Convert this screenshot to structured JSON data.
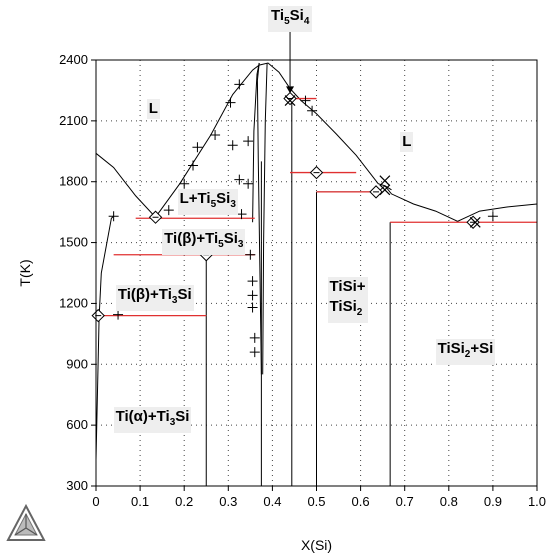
{
  "chart_data": {
    "type": "line",
    "title": "",
    "xlabel": "X(Si)",
    "ylabel": "T(K)",
    "xlim": [
      0,
      1
    ],
    "ylim": [
      300,
      2400
    ],
    "xticks": [
      "0",
      "0.1",
      "0.2",
      "0.3",
      "0.4",
      "0.5",
      "0.6",
      "0.7",
      "0.8",
      "0.9",
      "1.0"
    ],
    "yticks": [
      "300",
      "600",
      "900",
      "1200",
      "1500",
      "1800",
      "2100",
      "2400"
    ],
    "grid": "dotted",
    "series": [
      {
        "kind": "liquidus",
        "points": [
          [
            0,
            1940
          ],
          [
            0.04,
            1870
          ],
          [
            0.09,
            1730
          ],
          [
            0.135,
            1625
          ],
          [
            0.19,
            1790
          ],
          [
            0.26,
            2030
          ],
          [
            0.31,
            2230
          ],
          [
            0.355,
            2350
          ],
          [
            0.37,
            2375
          ],
          [
            0.39,
            2385
          ],
          [
            0.415,
            2340
          ],
          [
            0.44,
            2260
          ],
          [
            0.465,
            2200
          ],
          [
            0.5,
            2135
          ],
          [
            0.545,
            2035
          ],
          [
            0.59,
            1930
          ],
          [
            0.64,
            1790
          ],
          [
            0.655,
            1780
          ],
          [
            0.67,
            1740
          ],
          [
            0.72,
            1690
          ],
          [
            0.77,
            1655
          ],
          [
            0.82,
            1605
          ],
          [
            0.87,
            1655
          ],
          [
            0.93,
            1675
          ],
          [
            1.0,
            1690
          ]
        ]
      },
      {
        "kind": "solvus-left",
        "points": [
          [
            0,
            430
          ],
          [
            0.007,
            1130
          ],
          [
            0.012,
            1350
          ],
          [
            0.035,
            1620
          ],
          [
            0.04,
            1630
          ]
        ]
      },
      {
        "kind": "ti5si3-left-boundary",
        "points": [
          [
            0.375,
            850
          ],
          [
            0.372,
            1300
          ],
          [
            0.368,
            1900
          ],
          [
            0.366,
            2300
          ],
          [
            0.37,
            2385
          ]
        ]
      },
      {
        "kind": "ti5si3-right-boundary",
        "points": [
          [
            0.378,
            850
          ],
          [
            0.38,
            1500
          ],
          [
            0.384,
            2100
          ],
          [
            0.388,
            2385
          ]
        ]
      },
      {
        "kind": "ti5si3-upper",
        "points": [
          [
            0.355,
            1600
          ],
          [
            0.358,
            2050
          ],
          [
            0.365,
            2330
          ],
          [
            0.37,
            2385
          ]
        ]
      },
      {
        "kind": "tisi2-liquidus-step",
        "points": [
          [
            0.5,
            1750
          ],
          [
            0.64,
            1750
          ],
          [
            0.655,
            1780
          ],
          [
            0.67,
            1760
          ]
        ]
      }
    ],
    "compound_lines": [
      {
        "name": "Ti3Si",
        "x": 0.25,
        "ymin": 300,
        "ymax": 1440
      },
      {
        "name": "Ti5Si4",
        "x": 0.444,
        "ymin": 300,
        "ymax": 2210
      },
      {
        "name": "TiSi",
        "x": 0.5,
        "ymin": 300,
        "ymax": 1750
      },
      {
        "name": "TiSi2",
        "x": 0.667,
        "ymin": 300,
        "ymax": 1600
      },
      {
        "name": "Ti5Si3-solid",
        "x": 0.375,
        "ymin": 300,
        "ymax": 1900
      }
    ],
    "invariant_lines": [
      {
        "y": 1620,
        "x1": 0.09,
        "x2": 0.36
      },
      {
        "y": 1440,
        "x1": 0.04,
        "x2": 0.36
      },
      {
        "y": 1140,
        "x1": 0.007,
        "x2": 0.25
      },
      {
        "y": 2210,
        "x1": 0.44,
        "x2": 0.5
      },
      {
        "y": 1845,
        "x1": 0.44,
        "x2": 0.59
      },
      {
        "y": 1750,
        "x1": 0.5,
        "x2": 0.64
      },
      {
        "y": 1600,
        "x1": 0.667,
        "x2": 1.0
      }
    ],
    "plus_points": [
      [
        0.04,
        1630
      ],
      [
        0.05,
        1145
      ],
      [
        0.165,
        1660
      ],
      [
        0.2,
        1790
      ],
      [
        0.22,
        1880
      ],
      [
        0.23,
        1970
      ],
      [
        0.27,
        2030
      ],
      [
        0.305,
        2190
      ],
      [
        0.31,
        1980
      ],
      [
        0.325,
        2280
      ],
      [
        0.325,
        1810
      ],
      [
        0.33,
        1640
      ],
      [
        0.345,
        2000
      ],
      [
        0.345,
        1790
      ],
      [
        0.35,
        1440
      ],
      [
        0.355,
        1310
      ],
      [
        0.355,
        1240
      ],
      [
        0.355,
        1180
      ],
      [
        0.36,
        1030
      ],
      [
        0.36,
        960
      ],
      [
        0.475,
        2200
      ],
      [
        0.49,
        2150
      ],
      [
        0.9,
        1630
      ]
    ],
    "diamond_points": [
      [
        0.005,
        1140
      ],
      [
        0.135,
        1625
      ],
      [
        0.25,
        1440
      ],
      [
        0.44,
        2210
      ],
      [
        0.5,
        1845
      ],
      [
        0.635,
        1750
      ],
      [
        0.855,
        1600
      ]
    ],
    "cross_points": [
      [
        0.44,
        2200
      ],
      [
        0.655,
        1805
      ],
      [
        0.655,
        1760
      ],
      [
        0.86,
        1600
      ]
    ],
    "markers": [
      [
        0.44,
        2250
      ]
    ],
    "regions": [
      {
        "html": "L",
        "x": 0.115,
        "y": 2160
      },
      {
        "html": "L",
        "x": 0.69,
        "y": 1995
      },
      {
        "html": "L+Ti<sub>5</sub>Si<sub>3</sub>",
        "x": 0.185,
        "y": 1715
      },
      {
        "html": "Ti(β)+Ti<sub>5</sub>Si<sub>3</sub>",
        "x": 0.15,
        "y": 1520
      },
      {
        "html": "Ti(β)+Ti<sub>3</sub>Si",
        "x": 0.045,
        "y": 1240
      },
      {
        "html": "TiSi+<br>TiSi<sub>2</sub>",
        "x": 0.525,
        "y": 1280
      },
      {
        "html": "TiSi<sub>2</sub>+Si",
        "x": 0.77,
        "y": 975
      },
      {
        "html": "Ti(α)+Ti<sub>3</sub>Si",
        "x": 0.04,
        "y": 640
      }
    ],
    "phase_label": "Ti<sub>5</sub>Si<sub>4</sub>",
    "phase_label_x": 0.44
  },
  "colors": {
    "curve": "#000000",
    "invariant": "#e03030",
    "grid": "#444444"
  },
  "logo": "thermo-calc-logo"
}
